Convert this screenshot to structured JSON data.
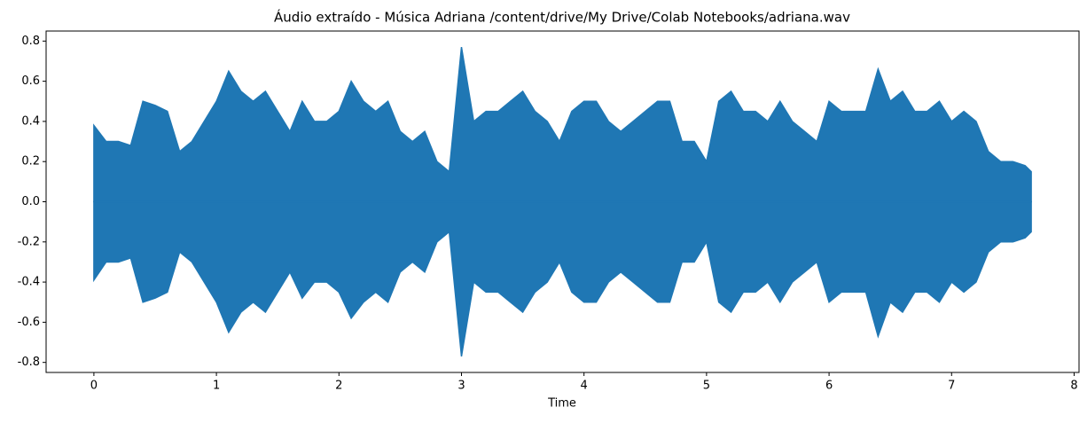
{
  "chart_data": {
    "type": "waveform",
    "title": "Áudio extraído - Música Adriana /content/drive/My Drive/Colab Notebooks/adriana.wav",
    "xlabel": "Time",
    "x": [
      0.0,
      0.1,
      0.2,
      0.3,
      0.4,
      0.5,
      0.6,
      0.7,
      0.8,
      0.9,
      1.0,
      1.1,
      1.2,
      1.3,
      1.4,
      1.5,
      1.6,
      1.7,
      1.8,
      1.9,
      2.0,
      2.1,
      2.2,
      2.3,
      2.4,
      2.5,
      2.6,
      2.7,
      2.8,
      2.9,
      3.0,
      3.1,
      3.2,
      3.3,
      3.4,
      3.5,
      3.6,
      3.7,
      3.8,
      3.9,
      4.0,
      4.1,
      4.2,
      4.3,
      4.4,
      4.5,
      4.6,
      4.7,
      4.8,
      4.9,
      5.0,
      5.1,
      5.2,
      5.3,
      5.4,
      5.5,
      5.6,
      5.7,
      5.8,
      5.9,
      6.0,
      6.1,
      6.2,
      6.3,
      6.4,
      6.5,
      6.6,
      6.7,
      6.8,
      6.9,
      7.0,
      7.1,
      7.2,
      7.3,
      7.4,
      7.5,
      7.6,
      7.65
    ],
    "series": [
      {
        "color": "#1f77b4",
        "values": [
          0.38,
          0.3,
          0.3,
          0.28,
          0.5,
          0.48,
          0.45,
          0.25,
          0.3,
          0.4,
          0.5,
          0.65,
          0.55,
          0.5,
          0.55,
          0.45,
          0.35,
          0.5,
          0.4,
          0.4,
          0.45,
          0.6,
          0.5,
          0.45,
          0.5,
          0.35,
          0.3,
          0.35,
          0.2,
          0.15,
          0.77,
          0.4,
          0.45,
          0.45,
          0.5,
          0.55,
          0.45,
          0.4,
          0.3,
          0.45,
          0.5,
          0.5,
          0.4,
          0.35,
          0.4,
          0.45,
          0.5,
          0.5,
          0.3,
          0.3,
          0.2,
          0.5,
          0.55,
          0.45,
          0.45,
          0.4,
          0.5,
          0.4,
          0.35,
          0.3,
          0.5,
          0.45,
          0.45,
          0.45,
          0.66,
          0.5,
          0.55,
          0.45,
          0.45,
          0.5,
          0.4,
          0.45,
          0.4,
          0.25,
          0.2,
          0.2,
          0.18,
          0.15
        ]
      },
      {
        "color": "#1f77b4",
        "values": [
          -0.39,
          -0.3,
          -0.3,
          -0.28,
          -0.5,
          -0.48,
          -0.45,
          -0.25,
          -0.3,
          -0.4,
          -0.5,
          -0.65,
          -0.55,
          -0.5,
          -0.55,
          -0.45,
          -0.35,
          -0.48,
          -0.4,
          -0.4,
          -0.45,
          -0.58,
          -0.5,
          -0.45,
          -0.5,
          -0.35,
          -0.3,
          -0.35,
          -0.2,
          -0.15,
          -0.77,
          -0.4,
          -0.45,
          -0.45,
          -0.5,
          -0.55,
          -0.45,
          -0.4,
          -0.3,
          -0.45,
          -0.5,
          -0.5,
          -0.4,
          -0.35,
          -0.4,
          -0.45,
          -0.5,
          -0.5,
          -0.3,
          -0.3,
          -0.2,
          -0.5,
          -0.55,
          -0.45,
          -0.45,
          -0.4,
          -0.5,
          -0.4,
          -0.35,
          -0.3,
          -0.5,
          -0.45,
          -0.45,
          -0.45,
          -0.67,
          -0.5,
          -0.55,
          -0.45,
          -0.45,
          -0.5,
          -0.4,
          -0.45,
          -0.4,
          -0.25,
          -0.2,
          -0.2,
          -0.18,
          -0.15
        ]
      }
    ],
    "xlim": [
      -0.39,
      8.04
    ],
    "xticks": [
      0,
      1,
      2,
      3,
      4,
      5,
      6,
      7,
      8
    ],
    "ylim": [
      -0.85,
      0.85
    ],
    "yticks": [
      -0.8,
      -0.6,
      -0.4,
      -0.2,
      {
        "value": 0,
        "label": "0.0"
      },
      0.2,
      0.4,
      0.6,
      0.8
    ]
  }
}
